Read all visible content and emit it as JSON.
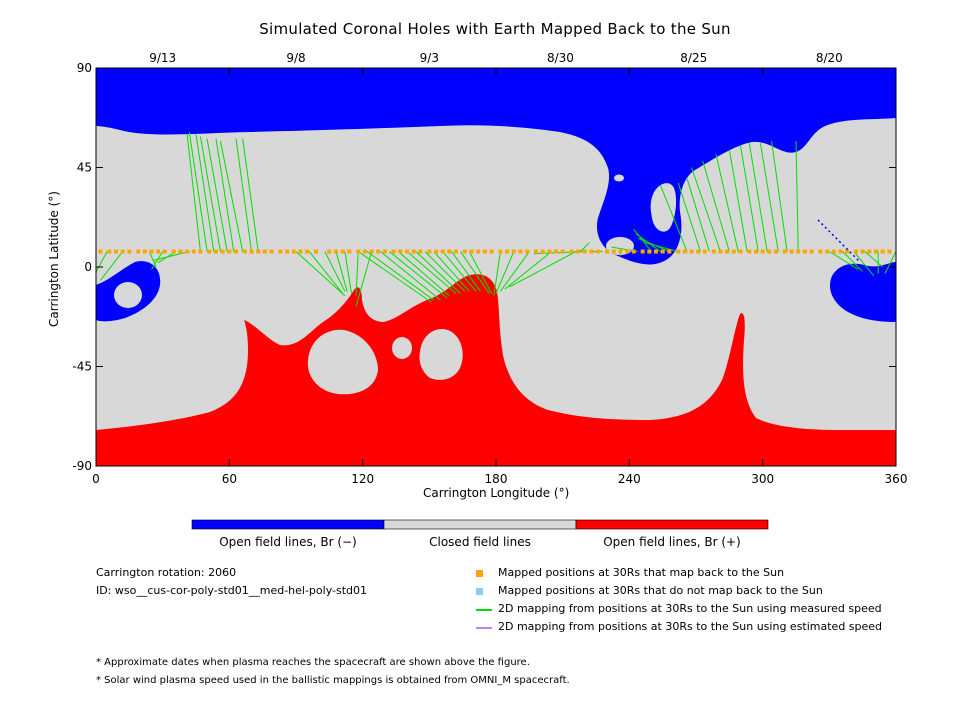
{
  "chart_data": {
    "type": "heatmap",
    "title": "Simulated Coronal Holes with Earth Mapped Back to the Sun",
    "xlabel": "Carrington Longitude (°)",
    "ylabel": "Carrington Latitude (°)",
    "xlim": [
      0,
      360
    ],
    "ylim": [
      -90,
      90
    ],
    "x_ticks": [
      0,
      60,
      120,
      180,
      240,
      300,
      360
    ],
    "y_ticks": [
      {
        "value": 90,
        "label": "90"
      },
      {
        "value": 45,
        "label": "45"
      },
      {
        "value": 0,
        "label": "0"
      },
      {
        "value": -45,
        "label": "-45"
      },
      {
        "value": -90,
        "label": "-90"
      }
    ],
    "top_axis_dates": [
      {
        "longitude": 30,
        "label": "9/13"
      },
      {
        "longitude": 90,
        "label": "9/8"
      },
      {
        "longitude": 150,
        "label": "9/3"
      },
      {
        "longitude": 209,
        "label": "8/30"
      },
      {
        "longitude": 269,
        "label": "8/25"
      },
      {
        "longitude": 330,
        "label": "8/20"
      }
    ],
    "regions": [
      {
        "name": "Open field lines, Br (−)",
        "color": "#0000ff"
      },
      {
        "name": "Closed field lines",
        "color": "#d8d8d8"
      },
      {
        "name": "Open field lines, Br (+)",
        "color": "#ff0000"
      }
    ],
    "mapped_points": {
      "latitude": 7,
      "longitudes": [
        2,
        6,
        9,
        12,
        15,
        19,
        22,
        25,
        28,
        31,
        35,
        38,
        41,
        44,
        47,
        51,
        54,
        57,
        60,
        63,
        67,
        70,
        73,
        76,
        79,
        83,
        86,
        89,
        92,
        95,
        99,
        105,
        108,
        111,
        114,
        118,
        121,
        124,
        127,
        130,
        134,
        137,
        140,
        143,
        146,
        150,
        153,
        156,
        159,
        162,
        166,
        169,
        172,
        175,
        178,
        182,
        185,
        188,
        191,
        194,
        198,
        201,
        204,
        207,
        210,
        214,
        217,
        220,
        223,
        226,
        230,
        233,
        236,
        239,
        242,
        246,
        249,
        252,
        255,
        258,
        262,
        265,
        268,
        271,
        274,
        278,
        281,
        284,
        287,
        290,
        294,
        297,
        300,
        303,
        306,
        310,
        313,
        316,
        319,
        322,
        326,
        329,
        332,
        335,
        338,
        342,
        345,
        348,
        351,
        354,
        357
      ]
    },
    "mapping_lines": [
      {
        "from": [
          5,
          7
        ],
        "to": [
          -2,
          -6
        ]
      },
      {
        "from": [
          12,
          7
        ],
        "to": [
          2,
          -6
        ]
      },
      {
        "from": [
          24,
          7
        ],
        "to": [
          27,
          0
        ]
      },
      {
        "from": [
          30,
          7
        ],
        "to": [
          25,
          -1
        ]
      },
      {
        "from": [
          36,
          7
        ],
        "to": [
          28,
          2
        ]
      },
      {
        "from": [
          42,
          7
        ],
        "to": [
          26,
          3
        ]
      },
      {
        "from": [
          47,
          7
        ],
        "to": [
          41,
          60
        ]
      },
      {
        "from": [
          50,
          7
        ],
        "to": [
          42,
          61
        ]
      },
      {
        "from": [
          53,
          7
        ],
        "to": [
          45,
          60
        ]
      },
      {
        "from": [
          56,
          7
        ],
        "to": [
          47,
          59
        ]
      },
      {
        "from": [
          59,
          7
        ],
        "to": [
          50,
          58
        ]
      },
      {
        "from": [
          62,
          7
        ],
        "to": [
          54,
          58
        ]
      },
      {
        "from": [
          66,
          7
        ],
        "to": [
          56,
          57
        ]
      },
      {
        "from": [
          70,
          7
        ],
        "to": [
          63,
          58
        ]
      },
      {
        "from": [
          73,
          7
        ],
        "to": [
          66,
          58
        ]
      },
      {
        "from": [
          90,
          7
        ],
        "to": [
          112,
          -13
        ]
      },
      {
        "from": [
          96,
          7
        ],
        "to": [
          111,
          -12
        ]
      },
      {
        "from": [
          103,
          7
        ],
        "to": [
          112,
          -11
        ]
      },
      {
        "from": [
          108,
          7
        ],
        "to": [
          113,
          -11
        ]
      },
      {
        "from": [
          112,
          7
        ],
        "to": [
          115,
          -12
        ]
      },
      {
        "from": [
          118,
          7
        ],
        "to": [
          117,
          -13
        ]
      },
      {
        "from": [
          124,
          7
        ],
        "to": [
          117,
          -18
        ]
      },
      {
        "from": [
          118,
          7
        ],
        "to": [
          151,
          -16
        ]
      },
      {
        "from": [
          122,
          7
        ],
        "to": [
          152,
          -15
        ]
      },
      {
        "from": [
          128,
          7
        ],
        "to": [
          155,
          -15
        ]
      },
      {
        "from": [
          132,
          7
        ],
        "to": [
          158,
          -14
        ]
      },
      {
        "from": [
          136,
          7
        ],
        "to": [
          159,
          -13
        ]
      },
      {
        "from": [
          140,
          7
        ],
        "to": [
          162,
          -12
        ]
      },
      {
        "from": [
          144,
          7
        ],
        "to": [
          164,
          -12
        ]
      },
      {
        "from": [
          148,
          7
        ],
        "to": [
          166,
          -11
        ]
      },
      {
        "from": [
          152,
          7
        ],
        "to": [
          168,
          -11
        ]
      },
      {
        "from": [
          156,
          7
        ],
        "to": [
          171,
          -11
        ]
      },
      {
        "from": [
          160,
          7
        ],
        "to": [
          173,
          -11
        ]
      },
      {
        "from": [
          164,
          7
        ],
        "to": [
          177,
          -12
        ]
      },
      {
        "from": [
          168,
          7
        ],
        "to": [
          178,
          -12
        ]
      },
      {
        "from": [
          182,
          7
        ],
        "to": [
          179,
          -13
        ]
      },
      {
        "from": [
          188,
          7
        ],
        "to": [
          180,
          -12
        ]
      },
      {
        "from": [
          195,
          7
        ],
        "to": [
          182,
          -11
        ]
      },
      {
        "from": [
          205,
          7
        ],
        "to": [
          184,
          -10
        ]
      },
      {
        "from": [
          216,
          7
        ],
        "to": [
          186,
          -9
        ]
      },
      {
        "from": [
          220,
          7
        ],
        "to": [
          197,
          6
        ]
      },
      {
        "from": [
          218,
          7
        ],
        "to": [
          222,
          11
        ]
      },
      {
        "from": [
          222,
          7
        ],
        "to": [
          228,
          7
        ]
      },
      {
        "from": [
          236,
          7
        ],
        "to": [
          236,
          5
        ]
      },
      {
        "from": [
          244,
          7
        ],
        "to": [
          232,
          9
        ]
      },
      {
        "from": [
          250,
          7
        ],
        "to": [
          242,
          17
        ]
      },
      {
        "from": [
          254,
          7
        ],
        "to": [
          243,
          15
        ]
      },
      {
        "from": [
          258,
          7
        ],
        "to": [
          244,
          13
        ]
      },
      {
        "from": [
          262,
          7
        ],
        "to": [
          247,
          11
        ]
      },
      {
        "from": [
          266,
          7
        ],
        "to": [
          254,
          37
        ]
      },
      {
        "from": [
          272,
          7
        ],
        "to": [
          262,
          38
        ]
      },
      {
        "from": [
          276,
          7
        ],
        "to": [
          266,
          40
        ]
      },
      {
        "from": [
          281,
          7
        ],
        "to": [
          268,
          45
        ]
      },
      {
        "from": [
          285,
          7
        ],
        "to": [
          273,
          48
        ]
      },
      {
        "from": [
          289,
          7
        ],
        "to": [
          279,
          51
        ]
      },
      {
        "from": [
          293,
          7
        ],
        "to": [
          285,
          53
        ]
      },
      {
        "from": [
          298,
          7
        ],
        "to": [
          290,
          55
        ]
      },
      {
        "from": [
          302,
          7
        ],
        "to": [
          294,
          56
        ]
      },
      {
        "from": [
          307,
          7
        ],
        "to": [
          299,
          56
        ]
      },
      {
        "from": [
          311,
          7
        ],
        "to": [
          304,
          57
        ]
      },
      {
        "from": [
          316,
          7
        ],
        "to": [
          315,
          57
        ]
      },
      {
        "from": [
          330,
          7
        ],
        "to": [
          343,
          -1
        ]
      },
      {
        "from": [
          336,
          7
        ],
        "to": [
          345,
          -2
        ]
      },
      {
        "from": [
          341,
          7
        ],
        "to": [
          350,
          -4
        ]
      },
      {
        "from": [
          346,
          7
        ],
        "to": [
          354,
          0
        ]
      },
      {
        "from": [
          352,
          7
        ],
        "to": [
          352,
          -3
        ]
      },
      {
        "from": [
          360,
          7
        ],
        "to": [
          355,
          -3
        ]
      }
    ],
    "legend_placement": "bottom-right",
    "grid": false
  },
  "colorbar_labels": [
    "Open field lines, Br (−)",
    "Closed field lines",
    "Open field lines, Br (+)"
  ],
  "info": {
    "rotation": "Carrington rotation: 2060",
    "id": "ID: wso__cus-cor-poly-std01__med-hel-poly-std01"
  },
  "legend": [
    {
      "label": "Mapped positions at 30Rs that map back to the Sun",
      "color": "#ffa500",
      "kind": "square"
    },
    {
      "label": "Mapped positions at 30Rs that do not map back to the Sun",
      "color": "#87cefa",
      "kind": "square"
    },
    {
      "label": "2D mapping from positions at 30Rs to the Sun using measured speed",
      "color": "#00e000",
      "kind": "line"
    },
    {
      "label": "2D mapping from positions at 30Rs to the Sun using estimated speed",
      "color": "#c080ff",
      "kind": "line"
    }
  ],
  "footnotes": [
    "* Approximate dates when plasma reaches the spacecraft are shown above the figure.",
    "* Solar wind plasma speed used in the ballistic mappings is obtained from OMNI_M spacecraft."
  ]
}
